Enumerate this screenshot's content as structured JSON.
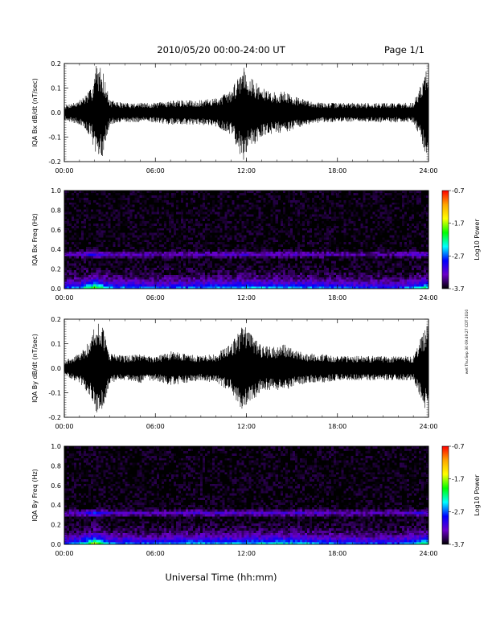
{
  "header": {
    "title": "2010/05/20  00:00-24:00 UT",
    "page": "Page 1/1"
  },
  "footer": {
    "xlabel": "Universal Time (hh:mm)",
    "side_note": "wet Thu Sep 30 09:49:27 CDT 2010"
  },
  "colorbar": {
    "label": "Log10 Power",
    "ticks": [
      "-0.7",
      "-1.7",
      "-2.7",
      "-3.7"
    ],
    "colors": [
      "#ff0000",
      "#ffa500",
      "#ffff00",
      "#00ff00",
      "#00ffff",
      "#0000ff",
      "#6a00c8",
      "#000000"
    ]
  },
  "chart_data": [
    {
      "type": "line",
      "ylabel": "IQA Bx dB/dt (nT/sec)",
      "xlim": [
        0,
        24
      ],
      "ylim": [
        -0.2,
        0.2
      ],
      "x_ticks": [
        "00:00",
        "06:00",
        "12:00",
        "18:00",
        "24:00"
      ],
      "y_ticks": [
        "-0.2",
        "-0.1",
        "0.0",
        "0.1",
        "0.2"
      ],
      "series": [
        {
          "x": [
            0,
            1,
            1.8,
            2.1,
            2.5,
            3,
            4,
            5,
            6,
            7,
            8,
            9,
            10,
            11,
            11.8,
            12.2,
            13,
            14,
            14.5,
            15,
            16,
            17,
            18,
            19,
            20,
            21,
            22,
            23,
            24
          ],
          "amplitude": [
            0.03,
            0.05,
            0.1,
            0.2,
            0.18,
            0.05,
            0.04,
            0.04,
            0.04,
            0.05,
            0.05,
            0.05,
            0.06,
            0.09,
            0.2,
            0.15,
            0.1,
            0.08,
            0.09,
            0.07,
            0.05,
            0.04,
            0.04,
            0.04,
            0.04,
            0.04,
            0.04,
            0.04,
            0.2
          ]
        }
      ]
    },
    {
      "type": "heatmap",
      "ylabel": "IQA Bx Freq (Hz)",
      "xlim": [
        0,
        24
      ],
      "ylim": [
        0,
        1
      ],
      "zlim": [
        -3.7,
        -0.7
      ],
      "x_ticks": [
        "00:00",
        "06:00",
        "12:00",
        "18:00",
        "24:00"
      ],
      "y_ticks": [
        "0.0",
        "0.2",
        "0.4",
        "0.6",
        "0.8",
        "1.0"
      ],
      "activity": {
        "x": [
          0,
          1,
          2,
          3,
          6,
          8,
          10,
          12,
          14,
          16,
          18,
          20,
          22,
          23.8,
          24
        ],
        "low_freq_power": [
          -2.6,
          -2.4,
          -1.5,
          -2.4,
          -2.6,
          -2.5,
          -2.4,
          -2.3,
          -2.4,
          -2.4,
          -2.6,
          -2.7,
          -2.7,
          -2.0,
          -2.0
        ],
        "band_freq": 0.35
      }
    },
    {
      "type": "line",
      "ylabel": "IQA By dB/dt (nT/sec)",
      "xlim": [
        0,
        24
      ],
      "ylim": [
        -0.2,
        0.2
      ],
      "x_ticks": [
        "00:00",
        "06:00",
        "12:00",
        "18:00",
        "24:00"
      ],
      "y_ticks": [
        "-0.2",
        "-0.1",
        "0.0",
        "0.1",
        "0.2"
      ],
      "series": [
        {
          "x": [
            0,
            1,
            1.8,
            2.1,
            2.5,
            3,
            4,
            5,
            6,
            7,
            8,
            9,
            10,
            11,
            11.8,
            12.2,
            13,
            14,
            14.5,
            15,
            16,
            17,
            18,
            19,
            20,
            21,
            22,
            23,
            24
          ],
          "amplitude": [
            0.03,
            0.06,
            0.12,
            0.2,
            0.18,
            0.06,
            0.05,
            0.06,
            0.05,
            0.07,
            0.06,
            0.05,
            0.06,
            0.1,
            0.18,
            0.15,
            0.09,
            0.09,
            0.1,
            0.08,
            0.06,
            0.06,
            0.05,
            0.05,
            0.05,
            0.05,
            0.05,
            0.05,
            0.2
          ]
        }
      ]
    },
    {
      "type": "heatmap",
      "ylabel": "IQA By Freq (Hz)",
      "xlim": [
        0,
        24
      ],
      "ylim": [
        0,
        1
      ],
      "zlim": [
        -3.7,
        -0.7
      ],
      "x_ticks": [
        "00:00",
        "06:00",
        "12:00",
        "18:00",
        "24:00"
      ],
      "y_ticks": [
        "0.0",
        "0.2",
        "0.4",
        "0.6",
        "0.8",
        "1.0"
      ],
      "activity": {
        "x": [
          0,
          1,
          2,
          3,
          6,
          8,
          10,
          12,
          14,
          16,
          18,
          20,
          22,
          23.8,
          24
        ],
        "low_freq_power": [
          -2.6,
          -2.4,
          -1.4,
          -2.4,
          -2.6,
          -2.3,
          -2.3,
          -2.3,
          -2.2,
          -2.3,
          -2.5,
          -2.6,
          -2.6,
          -1.9,
          -1.9
        ],
        "band_freq": 0.32
      }
    }
  ]
}
